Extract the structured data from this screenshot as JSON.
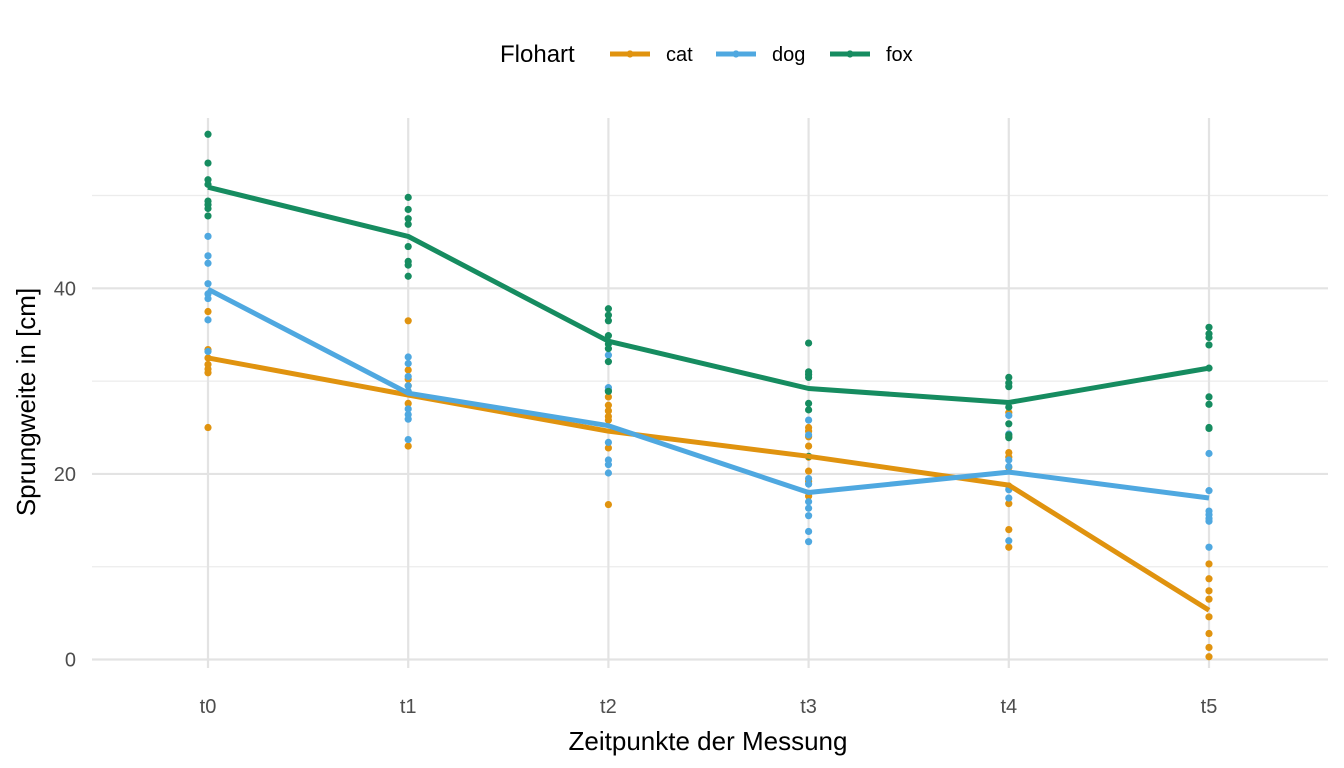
{
  "chart_data": {
    "type": "line",
    "xlabel": "Zeitpunkte der Messung",
    "ylabel": "Sprungweite in [cm]",
    "categories": [
      "t0",
      "t1",
      "t2",
      "t3",
      "t4",
      "t5"
    ],
    "ylim": [
      -3.5,
      59
    ],
    "yticks": [
      0,
      20,
      40
    ],
    "grid": true,
    "legend": {
      "title": "Flohart",
      "position": "top"
    },
    "series": [
      {
        "name": "cat",
        "color": "#E0930F",
        "means": [
          32.5,
          28.5,
          24.6,
          21.9,
          18.8,
          5.3
        ],
        "points": [
          [
            37.5,
            33.4,
            32.5,
            31.8,
            31.3,
            30.9,
            25.0
          ],
          [
            36.5,
            31.2,
            30.2,
            29.5,
            28.7,
            27.6,
            23.0
          ],
          [
            29.0,
            28.3,
            27.4,
            26.8,
            26.2,
            25.8,
            22.8,
            16.7
          ],
          [
            25.0,
            24.6,
            24.0,
            23.0,
            21.8,
            20.3,
            19.2,
            17.6
          ],
          [
            26.6,
            24.0,
            22.3,
            21.8,
            20.7,
            18.7,
            16.8,
            14.0,
            12.1
          ],
          [
            10.3,
            8.7,
            7.4,
            6.5,
            4.6,
            2.8,
            1.3,
            0.3
          ]
        ]
      },
      {
        "name": "dog",
        "color": "#4FA8E0",
        "means": [
          39.9,
          28.7,
          25.2,
          18.0,
          20.2,
          17.4
        ],
        "points": [
          [
            45.6,
            43.5,
            42.7,
            40.5,
            39.4,
            38.9,
            36.6,
            33.2
          ],
          [
            32.6,
            31.9,
            30.5,
            29.5,
            28.9,
            27.0,
            26.4,
            25.9,
            23.7
          ],
          [
            32.8,
            29.3,
            29.0,
            23.4,
            21.5,
            21.0,
            20.1
          ],
          [
            25.8,
            24.2,
            19.5,
            18.9,
            17.0,
            16.3,
            15.5,
            13.8,
            12.7
          ],
          [
            26.3,
            24.3,
            21.5,
            20.8,
            18.3,
            17.4,
            12.8
          ],
          [
            22.2,
            18.2,
            16.0,
            15.6,
            15.2,
            14.9,
            12.1
          ]
        ]
      },
      {
        "name": "fox",
        "color": "#168C60",
        "means": [
          50.9,
          45.6,
          34.3,
          29.2,
          27.7,
          31.4
        ],
        "points": [
          [
            56.6,
            53.5,
            51.7,
            51.2,
            49.4,
            49.0,
            48.6,
            47.8
          ],
          [
            49.8,
            48.5,
            47.5,
            46.9,
            44.5,
            42.9,
            42.5,
            41.3
          ],
          [
            37.8,
            37.1,
            36.5,
            34.9,
            34.0,
            33.5,
            32.1,
            28.9
          ],
          [
            34.1,
            31.0,
            30.7,
            30.4,
            27.6,
            26.9,
            21.9
          ],
          [
            30.4,
            29.8,
            29.4,
            27.2,
            25.4,
            24.2,
            23.9
          ],
          [
            35.8,
            35.1,
            34.7,
            33.9,
            31.4,
            28.3,
            27.5,
            25.0,
            24.9
          ]
        ]
      }
    ]
  }
}
